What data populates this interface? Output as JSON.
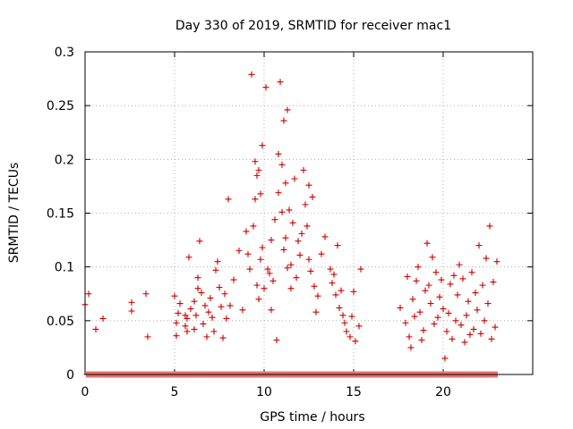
{
  "chart_data": {
    "type": "scatter",
    "title": "Day 330 of 2019, SRMTID for receiver mac1",
    "xlabel": "GPS time / hours",
    "ylabel": "SRMTID / TECUs",
    "xlim": [
      0,
      25
    ],
    "ylim": [
      0,
      0.3
    ],
    "x_ticks": [
      0,
      5,
      10,
      15,
      20
    ],
    "x_tick_labels": [
      "0",
      "5",
      "10",
      "15",
      "20"
    ],
    "y_ticks": [
      0,
      0.05,
      0.1,
      0.15,
      0.2,
      0.25,
      0.3
    ],
    "y_tick_labels": [
      "0",
      "0.05",
      "0.1",
      "0.15",
      "0.2",
      "0.25",
      "0.3"
    ],
    "grid": true,
    "marker": "plus",
    "color": "#cc0000",
    "zero_band": {
      "y": 0,
      "x_from": 0.1,
      "x_to": 23.0,
      "x_step": 0.1
    },
    "series": [
      {
        "name": "SRMTID",
        "x": [
          0.0,
          0.2,
          0.6,
          1.0,
          2.6,
          2.6,
          3.4,
          3.5,
          5.0,
          5.1,
          5.1,
          5.2,
          5.3,
          5.6,
          5.6,
          5.7,
          5.7,
          5.8,
          5.9,
          6.1,
          6.1,
          6.2,
          6.3,
          6.3,
          6.4,
          6.5,
          6.6,
          6.7,
          6.8,
          6.9,
          7.0,
          7.1,
          7.2,
          7.3,
          7.4,
          7.5,
          7.6,
          7.7,
          7.8,
          7.9,
          8.0,
          8.1,
          8.3,
          8.6,
          8.8,
          9.0,
          9.1,
          9.2,
          9.3,
          9.4,
          9.5,
          9.5,
          9.6,
          9.6,
          9.7,
          9.7,
          9.8,
          9.8,
          9.9,
          9.9,
          10.0,
          10.1,
          10.2,
          10.3,
          10.4,
          10.4,
          10.5,
          10.6,
          10.7,
          10.8,
          10.8,
          10.9,
          11.0,
          11.0,
          11.1,
          11.1,
          11.2,
          11.2,
          11.3,
          11.3,
          11.4,
          11.5,
          11.5,
          11.6,
          11.7,
          11.8,
          11.9,
          12.0,
          12.1,
          12.2,
          12.3,
          12.4,
          12.5,
          12.5,
          12.6,
          12.7,
          12.8,
          12.9,
          13.0,
          13.2,
          13.4,
          13.7,
          13.8,
          13.9,
          14.0,
          14.1,
          14.2,
          14.3,
          14.4,
          14.5,
          14.6,
          14.8,
          14.9,
          15.0,
          15.1,
          15.3,
          15.4,
          17.6,
          17.9,
          18.0,
          18.1,
          18.2,
          18.3,
          18.4,
          18.5,
          18.6,
          18.7,
          18.8,
          18.9,
          19.0,
          19.1,
          19.2,
          19.3,
          19.4,
          19.5,
          19.6,
          19.7,
          19.8,
          19.9,
          20.0,
          20.1,
          20.2,
          20.3,
          20.4,
          20.5,
          20.6,
          20.7,
          20.8,
          20.9,
          21.0,
          21.1,
          21.2,
          21.3,
          21.4,
          21.5,
          21.6,
          21.7,
          21.8,
          21.9,
          22.0,
          22.1,
          22.2,
          22.3,
          22.4,
          22.5,
          22.6,
          22.7,
          22.8,
          22.9,
          23.0
        ],
        "y": [
          0.065,
          0.075,
          0.042,
          0.052,
          0.067,
          0.059,
          0.075,
          0.035,
          0.073,
          0.036,
          0.048,
          0.057,
          0.066,
          0.055,
          0.045,
          0.052,
          0.04,
          0.109,
          0.061,
          0.068,
          0.042,
          0.055,
          0.08,
          0.09,
          0.124,
          0.076,
          0.047,
          0.064,
          0.035,
          0.058,
          0.071,
          0.053,
          0.04,
          0.097,
          0.105,
          0.081,
          0.063,
          0.034,
          0.075,
          0.052,
          0.163,
          0.064,
          0.088,
          0.115,
          0.06,
          0.133,
          0.112,
          0.098,
          0.279,
          0.138,
          0.163,
          0.198,
          0.185,
          0.083,
          0.07,
          0.19,
          0.107,
          0.168,
          0.118,
          0.213,
          0.08,
          0.267,
          0.098,
          0.094,
          0.06,
          0.125,
          0.087,
          0.144,
          0.032,
          0.205,
          0.169,
          0.272,
          0.195,
          0.151,
          0.236,
          0.116,
          0.127,
          0.178,
          0.099,
          0.246,
          0.153,
          0.102,
          0.08,
          0.141,
          0.182,
          0.09,
          0.124,
          0.111,
          0.131,
          0.19,
          0.158,
          0.138,
          0.107,
          0.176,
          0.096,
          0.165,
          0.082,
          0.058,
          0.073,
          0.112,
          0.128,
          0.098,
          0.085,
          0.093,
          0.074,
          0.12,
          0.062,
          0.078,
          0.055,
          0.048,
          0.04,
          0.035,
          0.054,
          0.077,
          0.031,
          0.045,
          0.098,
          0.062,
          0.048,
          0.091,
          0.035,
          0.025,
          0.07,
          0.054,
          0.087,
          0.1,
          0.058,
          0.032,
          0.041,
          0.078,
          0.122,
          0.083,
          0.066,
          0.109,
          0.047,
          0.095,
          0.053,
          0.072,
          0.088,
          0.061,
          0.015,
          0.04,
          0.057,
          0.084,
          0.033,
          0.092,
          0.05,
          0.074,
          0.102,
          0.046,
          0.089,
          0.03,
          0.055,
          0.068,
          0.037,
          0.095,
          0.042,
          0.076,
          0.06,
          0.12,
          0.038,
          0.083,
          0.05,
          0.108,
          0.066,
          0.138,
          0.033,
          0.086,
          0.044,
          0.105
        ]
      }
    ]
  }
}
